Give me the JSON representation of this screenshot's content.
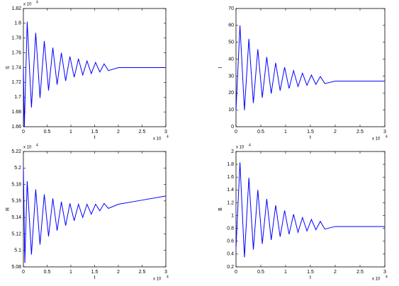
{
  "chart_data": [
    {
      "type": "line",
      "ylabel": "S",
      "y_multiplier": "x 10",
      "y_exponent": "4",
      "xlabel": "t",
      "x_multiplier": "x 10",
      "x_exponent": "4",
      "color": "#0000ff",
      "x": [
        0,
        0.02,
        0.08,
        0.17,
        0.26,
        0.35,
        0.44,
        0.53,
        0.62,
        0.71,
        0.8,
        0.89,
        0.98,
        1.07,
        1.16,
        1.25,
        1.34,
        1.43,
        1.52,
        1.61,
        1.7,
        1.79,
        2.0,
        2.5,
        3.0
      ],
      "values": [
        1.74,
        1.66,
        1.802,
        1.686,
        1.787,
        1.699,
        1.776,
        1.709,
        1.767,
        1.717,
        1.76,
        1.722,
        1.755,
        1.727,
        1.752,
        1.73,
        1.749,
        1.732,
        1.747,
        1.734,
        1.745,
        1.736,
        1.74,
        1.74,
        1.74
      ],
      "xlim": [
        0,
        3
      ],
      "xticks": [
        0,
        0.5,
        1,
        1.5,
        2,
        2.5,
        3
      ],
      "ylim": [
        1.66,
        1.82
      ],
      "yticks": [
        1.66,
        1.68,
        1.7,
        1.72,
        1.74,
        1.76,
        1.78,
        1.8,
        1.82
      ]
    },
    {
      "type": "line",
      "ylabel": "I",
      "xlabel": "t",
      "x_multiplier": "x 10",
      "x_exponent": "4",
      "color": "#0000ff",
      "x": [
        0,
        0.08,
        0.17,
        0.26,
        0.35,
        0.44,
        0.53,
        0.62,
        0.71,
        0.8,
        0.89,
        0.98,
        1.07,
        1.16,
        1.25,
        1.34,
        1.43,
        1.52,
        1.61,
        1.7,
        1.79,
        2.0,
        2.5,
        3.0
      ],
      "values": [
        10,
        60,
        9.8,
        52,
        14,
        45.9,
        17.2,
        41.3,
        19.6,
        37.8,
        21.4,
        35.2,
        22.7,
        33.2,
        23.8,
        31.7,
        24.5,
        30.6,
        25.1,
        29.7,
        25.6,
        27,
        27,
        27
      ],
      "xlim": [
        0,
        3
      ],
      "xticks": [
        0,
        0.5,
        1,
        1.5,
        2,
        2.5,
        3
      ],
      "ylim": [
        0,
        70
      ],
      "yticks": [
        0,
        10,
        20,
        30,
        40,
        50,
        60,
        70
      ]
    },
    {
      "type": "line",
      "ylabel": "R",
      "y_multiplier": "x 10",
      "y_exponent": "4",
      "xlabel": "t",
      "x_multiplier": "x 10",
      "x_exponent": "4",
      "color": "#0000ff",
      "x": [
        0,
        0.03,
        0.08,
        0.17,
        0.26,
        0.35,
        0.44,
        0.53,
        0.62,
        0.71,
        0.8,
        0.89,
        0.98,
        1.07,
        1.16,
        1.25,
        1.34,
        1.43,
        1.52,
        1.61,
        1.7,
        1.79,
        2.0,
        2.5,
        3.0
      ],
      "values": [
        5.2,
        5.085,
        5.184,
        5.095,
        5.174,
        5.107,
        5.168,
        5.117,
        5.163,
        5.124,
        5.159,
        5.13,
        5.157,
        5.136,
        5.156,
        5.14,
        5.156,
        5.144,
        5.156,
        5.148,
        5.157,
        5.151,
        5.156,
        5.161,
        5.166
      ],
      "xlim": [
        0,
        3
      ],
      "xticks": [
        0,
        0.5,
        1,
        1.5,
        2,
        2.5,
        3
      ],
      "ylim": [
        5.08,
        5.22
      ],
      "yticks": [
        5.08,
        5.1,
        5.12,
        5.14,
        5.16,
        5.18,
        5.2,
        5.22
      ]
    },
    {
      "type": "line",
      "ylabel": "B",
      "y_multiplier": "x 10",
      "y_exponent": "4",
      "xlabel": "t",
      "x_multiplier": "x 10",
      "x_exponent": "4",
      "color": "#0000ff",
      "x": [
        0,
        0.08,
        0.17,
        0.26,
        0.35,
        0.44,
        0.53,
        0.62,
        0.71,
        0.8,
        0.89,
        0.98,
        1.07,
        1.16,
        1.25,
        1.34,
        1.43,
        1.52,
        1.61,
        1.7,
        1.79,
        2.0,
        2.5,
        3.0
      ],
      "values": [
        0.5,
        1.83,
        0.35,
        1.59,
        0.47,
        1.4,
        0.56,
        1.26,
        0.62,
        1.16,
        0.67,
        1.08,
        0.71,
        1.02,
        0.74,
        0.97,
        0.76,
        0.94,
        0.78,
        0.91,
        0.79,
        0.83,
        0.83,
        0.83
      ],
      "xlim": [
        0,
        3
      ],
      "xticks": [
        0,
        0.5,
        1,
        1.5,
        2,
        2.5,
        3
      ],
      "ylim": [
        0.2,
        2
      ],
      "yticks": [
        0.2,
        0.4,
        0.6,
        0.8,
        1,
        1.2,
        1.4,
        1.6,
        1.8,
        2
      ]
    }
  ]
}
